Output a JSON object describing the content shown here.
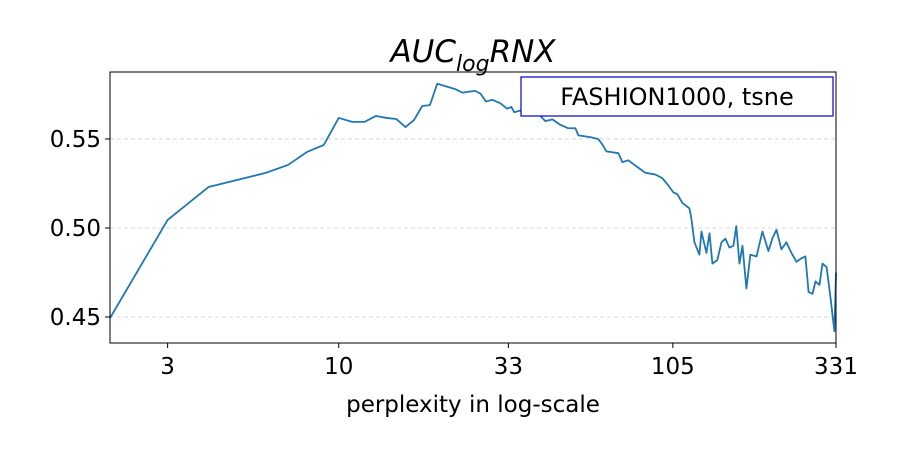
{
  "chart_data": {
    "type": "line",
    "title": {
      "main": "AUC",
      "sub": "log",
      "rest": "RNX"
    },
    "x_label": "perplexity in log-scale",
    "annotation": "FASHION1000, tsne",
    "x_scale": "log",
    "xlim": [
      2,
      331
    ],
    "xticks": [
      3,
      10,
      33,
      105,
      331
    ],
    "ylim": [
      0.4354,
      0.5876
    ],
    "yticks": [
      0.45,
      {
        "value": 0.5,
        "label": "0.50"
      },
      0.55
    ],
    "grid": true,
    "series": [
      {
        "name": "AUC_log RNX",
        "color": "#1f77b4",
        "x": [
          2,
          3,
          4,
          6,
          7,
          8,
          9,
          10,
          11,
          12,
          13,
          14,
          15,
          16,
          17,
          18,
          19,
          20,
          22.7,
          23.9,
          26.1,
          27.1,
          28.2,
          29.5,
          31.2,
          32.7,
          33.7,
          34.4,
          35.9,
          38.5,
          41.3,
          42.8,
          45,
          47.5,
          50.3,
          52.9,
          54,
          58.7,
          62.1,
          63.9,
          65.8,
          71.6,
          73.6,
          76.8,
          80.7,
          86.5,
          92.9,
          97.5,
          101.6,
          105.4,
          108.4,
          112.3,
          118,
          119.7,
          122.2,
          126.6,
          128.4,
          133,
          135.9,
          138.7,
          143.6,
          147.9,
          152,
          156.3,
          160.8,
          164.1,
          167.8,
          171.4,
          176.2,
          181.2,
          189.2,
          197.2,
          205.7,
          211.4,
          217.7,
          225.4,
          233.4,
          241.9,
          250.6,
          259.6,
          266.9,
          272.9,
          280.6,
          286.5,
          294.7,
          300.9,
          309.8,
          318.4,
          327.3,
          331
        ],
        "values": [
          0.4494,
          0.5045,
          0.523,
          0.531,
          0.5354,
          0.5427,
          0.5466,
          0.5618,
          0.5596,
          0.5596,
          0.5629,
          0.5618,
          0.5612,
          0.5567,
          0.5607,
          0.5685,
          0.569,
          0.581,
          0.578,
          0.576,
          0.577,
          0.5755,
          0.571,
          0.572,
          0.57,
          0.567,
          0.568,
          0.565,
          0.566,
          0.564,
          0.563,
          0.56,
          0.561,
          0.558,
          0.556,
          0.556,
          0.552,
          0.551,
          0.55,
          0.547,
          0.543,
          0.542,
          0.537,
          0.538,
          0.535,
          0.531,
          0.53,
          0.528,
          0.524,
          0.52,
          0.519,
          0.514,
          0.511,
          0.505,
          0.492,
          0.485,
          0.498,
          0.486,
          0.497,
          0.48,
          0.482,
          0.492,
          0.494,
          0.489,
          0.49,
          0.501,
          0.48,
          0.49,
          0.466,
          0.485,
          0.484,
          0.498,
          0.487,
          0.494,
          0.499,
          0.488,
          0.492,
          0.486,
          0.481,
          0.483,
          0.484,
          0.464,
          0.463,
          0.47,
          0.468,
          0.48,
          0.478,
          0.461,
          0.442,
          0.475
        ]
      }
    ]
  }
}
